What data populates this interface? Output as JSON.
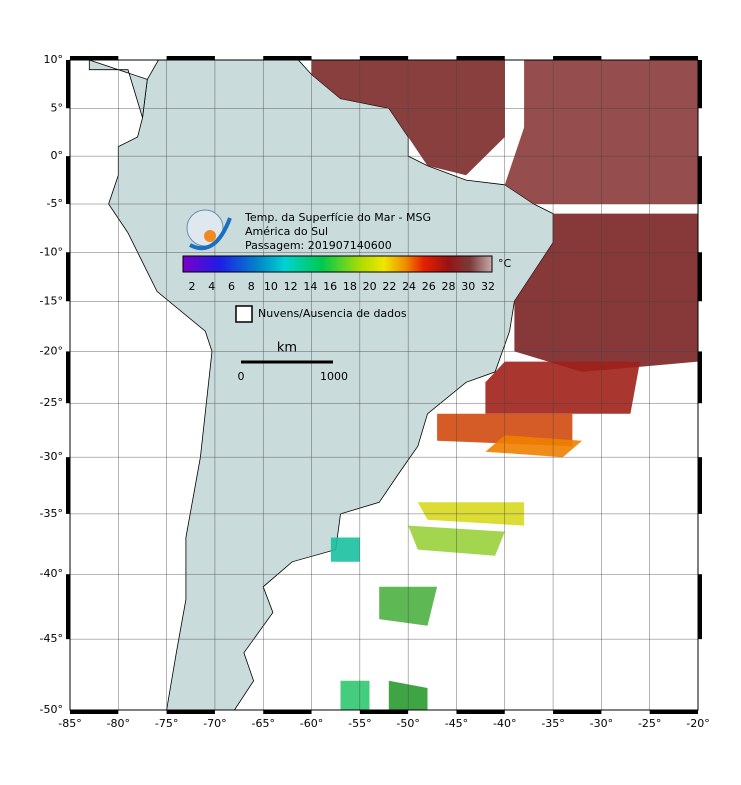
{
  "map": {
    "lat_labels": [
      "10°",
      "5°",
      "0°",
      "-5°",
      "-10°",
      "-15°",
      "-20°",
      "-25°",
      "-30°",
      "-35°",
      "-40°",
      "-45°",
      "-50°"
    ],
    "lon_labels": [
      "-85°",
      "-80°",
      "-75°",
      "-70°",
      "-65°",
      "-60°",
      "-55°",
      "-50°",
      "-45°",
      "-40°",
      "-35°",
      "-30°",
      "-25°",
      "-20°"
    ],
    "legend": {
      "title_lines": [
        "Temp. da Superfície do Mar - MSG",
        "América do Sul",
        "Passagem: 201907140600"
      ],
      "colorbar_ticks": [
        2,
        4,
        6,
        8,
        10,
        12,
        14,
        16,
        18,
        20,
        22,
        24,
        26,
        28,
        30,
        32
      ],
      "unit": "°C",
      "no_data_label": "Nuvens/Ausencia de dados"
    },
    "scale_bar": {
      "unit": "km",
      "start": "0",
      "end": "1000"
    }
  }
}
